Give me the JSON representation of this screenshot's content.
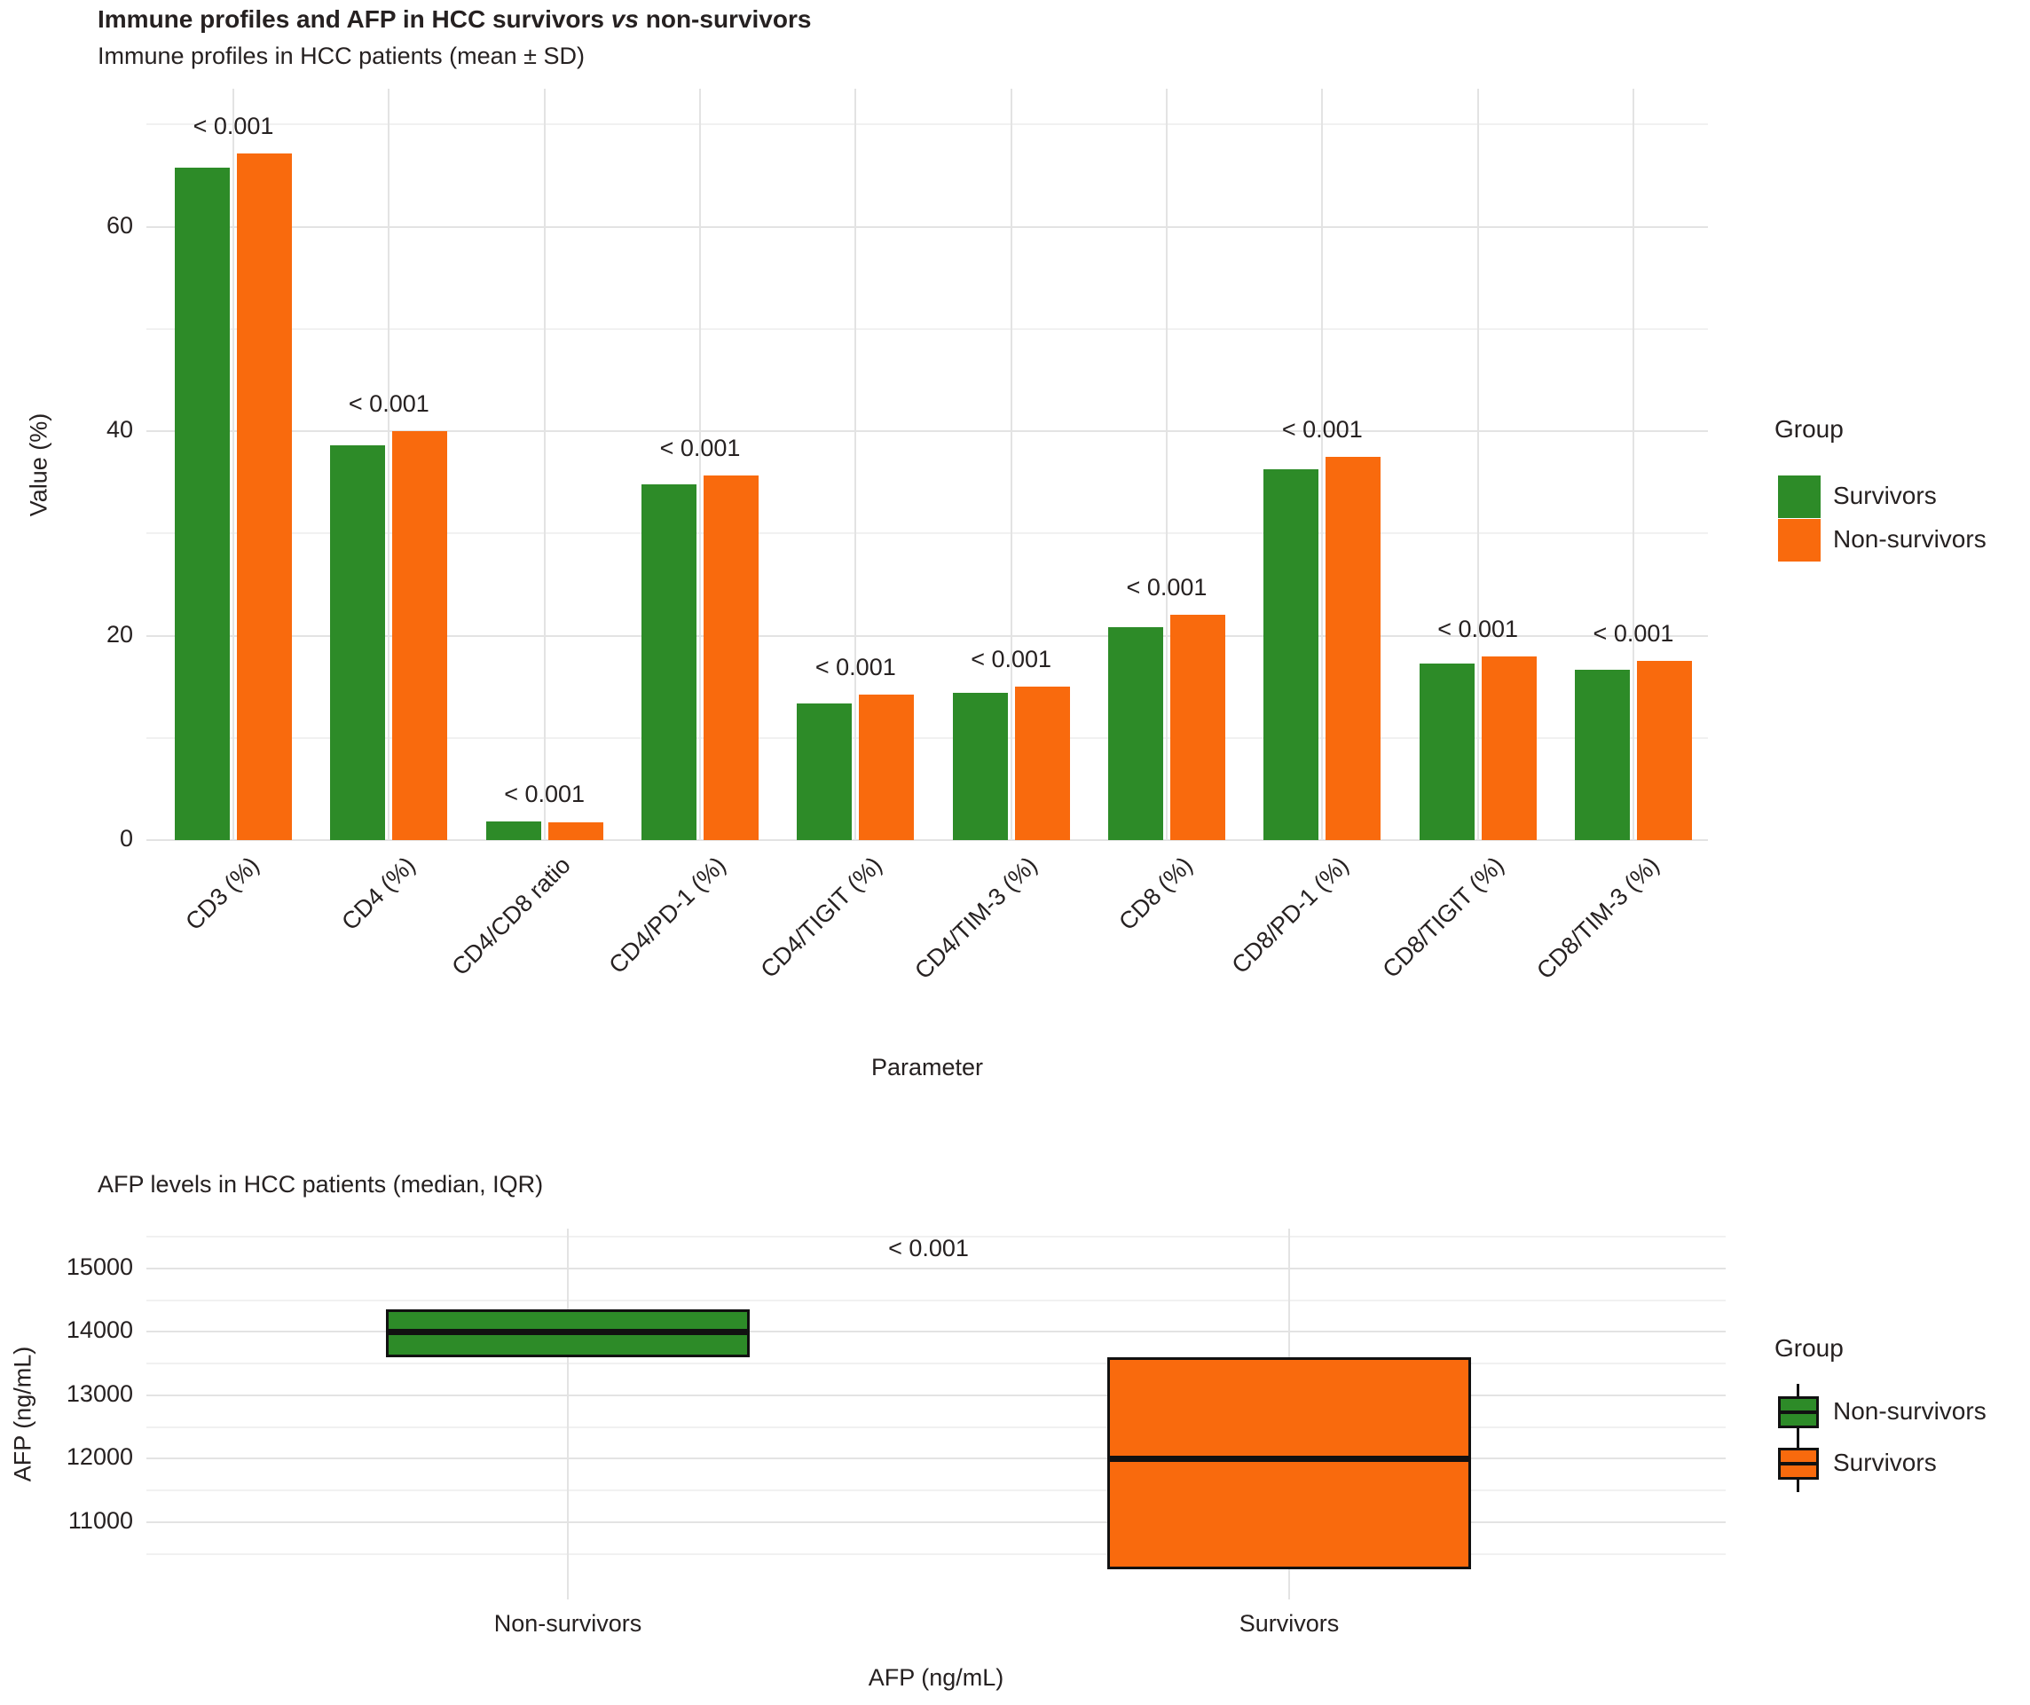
{
  "title": {
    "prefix": "Immune profiles and AFP in HCC survivors ",
    "vs": "vs",
    "suffix": " non-survivors"
  },
  "colors": {
    "survivors_green": "#2d8b28",
    "non_survivors_orange": "#f96a0d",
    "text": "#262121",
    "grid_major": "#e3e3e3",
    "grid_minor": "#f1f1f1",
    "box_outline": "#111111"
  },
  "chart_data": [
    {
      "type": "bar",
      "title": "Immune profiles in HCC patients (mean ± SD)",
      "xlabel": "Parameter",
      "ylabel": "Value (%)",
      "ylim": [
        0,
        73.5
      ],
      "yticks": [
        0,
        20,
        40,
        60
      ],
      "yticks_minor": [
        10,
        30,
        50,
        70
      ],
      "grid": true,
      "legend_position": "right",
      "categories": [
        "CD3 (%)",
        "CD4 (%)",
        "CD4/CD8 ratio",
        "CD4/PD-1 (%)",
        "CD4/TIGIT (%)",
        "CD4/TIM-3 (%)",
        "CD8 (%)",
        "CD8/PD-1 (%)",
        "CD8/TIGIT (%)",
        "CD8/TIM-3 (%)"
      ],
      "series": [
        {
          "name": "Survivors",
          "color": "#2d8b28",
          "values": [
            65.8,
            38.6,
            1.8,
            34.8,
            13.4,
            14.4,
            20.8,
            36.3,
            17.3,
            16.7
          ]
        },
        {
          "name": "Non-survivors",
          "color": "#f96a0d",
          "values": [
            67.2,
            40.0,
            1.7,
            35.7,
            14.2,
            15.0,
            22.0,
            37.5,
            18.0,
            17.5
          ]
        }
      ],
      "annotations": [
        "< 0.001",
        "< 0.001",
        "< 0.001",
        "< 0.001",
        "< 0.001",
        "< 0.001",
        "< 0.001",
        "< 0.001",
        "< 0.001",
        "< 0.001"
      ],
      "legend": {
        "title": "Group",
        "items": [
          {
            "label": "Survivors",
            "color": "#2d8b28"
          },
          {
            "label": "Non-survivors",
            "color": "#f96a0d"
          }
        ]
      }
    },
    {
      "type": "boxplot",
      "title": "AFP levels in HCC patients (median, IQR)",
      "xlabel": "AFP (ng/mL)",
      "ylabel": "AFP (ng/mL)",
      "ylim": [
        9780,
        15630
      ],
      "yticks": [
        11000,
        12000,
        13000,
        14000,
        15000
      ],
      "yticks_minor": [
        10500,
        11500,
        12500,
        13500,
        14500,
        15500
      ],
      "grid": true,
      "legend_position": "right",
      "annotation": "< 0.001",
      "categories": [
        "Non-survivors",
        "Survivors"
      ],
      "boxes": [
        {
          "group": "Non-survivors",
          "color": "#2d8b28",
          "q1": 13600,
          "median": 14000,
          "q3": 14350
        },
        {
          "group": "Survivors",
          "color": "#f96a0d",
          "q1": 10250,
          "median": 12000,
          "q3": 13600
        }
      ],
      "legend": {
        "title": "Group",
        "items": [
          {
            "label": "Non-survivors",
            "color": "#2d8b28"
          },
          {
            "label": "Survivors",
            "color": "#f96a0d"
          }
        ]
      }
    }
  ]
}
